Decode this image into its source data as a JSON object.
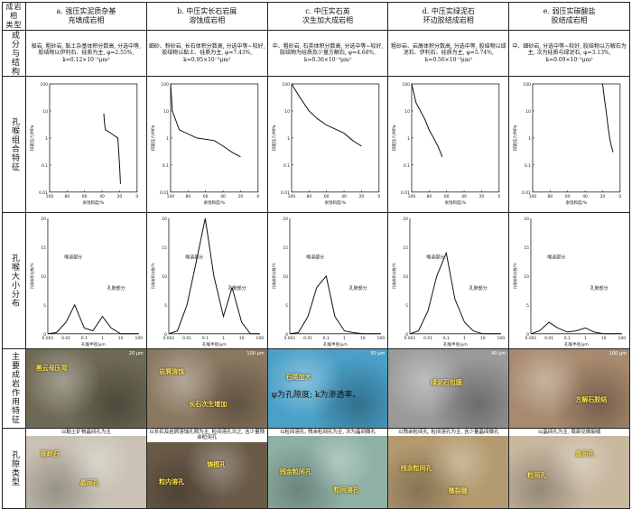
{
  "header": {
    "corner": "成岩相\n类型",
    "cols": [
      "a. 强压实泥质杂基\n充填成岩相",
      "b. 中压实长石岩屑\n溶蚀成岩相",
      "c. 中压实石英\n次生加大成岩相",
      "d. 中压实绿泥石\n环边胶结成岩相",
      "e. 弱压实碳酸盐\n胶结成岩相"
    ]
  },
  "rows": {
    "struct": "成分与结构",
    "capillary": "孔喉组合特征",
    "pore_dist": "孔喉大小分布",
    "diagenesis": "主要成岩作用特征",
    "pore_type": "孔隙类型"
  },
  "struct_text": [
    "极岩, 粗砂岩, 黏土杂基体积分数高, 分选中等, 胶结物以伊利石、硅质为主, φ=2.55%, k=0.12×10⁻³μm²",
    "细砂、粉砂岩, 长石体积分数高, 分选中等~较好, 胶结物以黏土、硅质为主, φ=7.43%, k=0.95×10⁻³μm²",
    "中、粗砂岩, 石英体积分数高, 分选中等~较好, 胶结物为硅质及少量方解石, φ=4.68%, k=0.36×10⁻³μm²",
    "粗砂岩、岩屑体积分数高, 分选中等, 胶结物以绿泥石、伊利石、硅质为主, φ=5.74%, k=0.56×10⁻³μm²",
    "中、细砂岩, 分选中等~较好, 胶结物以方解石为主, 次为硅质与绿泥石, φ=3.13%, k=0.09×10⁻³μm²"
  ],
  "axis": {
    "cap_y": "排驱压力/MPa",
    "cap_x": "汞饱和度/%",
    "cap_y_ticks": [
      "100",
      "10",
      "1",
      "0.1",
      "0.01"
    ],
    "cap_x_ticks": [
      "100",
      "80",
      "60",
      "40",
      "20",
      "0"
    ],
    "pd_y": "孔喉体积分数/%",
    "pd_x": "孔喉半径/μm",
    "pd_y_ticks": [
      "20",
      "15",
      "10",
      "5",
      "0"
    ],
    "pd_x_ticks": [
      "0.001",
      "0.01",
      "0.1",
      "1",
      "10",
      "100"
    ],
    "throat": "喉道部分",
    "pore": "孔隙部分"
  },
  "chart_data": [
    {
      "type": "line",
      "panel": "a",
      "title": "",
      "xlabel": "汞饱和度/%",
      "ylabel": "排驱压力/MPa",
      "x_reversed": true,
      "series": [
        {
          "x": [
            38,
            37,
            36,
            30,
            22,
            20,
            19
          ],
          "y": [
            8,
            3,
            2,
            1.5,
            1.0,
            0.1,
            0.02
          ]
        }
      ]
    },
    {
      "type": "line",
      "panel": "b",
      "title": "",
      "xlabel": "汞饱和度/%",
      "ylabel": "排驱压力/MPa",
      "x_reversed": true,
      "series": [
        {
          "x": [
            100,
            98,
            90,
            70,
            50,
            40,
            30,
            20
          ],
          "y": [
            100,
            10,
            2,
            1,
            0.8,
            0.5,
            0.3,
            0.2
          ]
        }
      ]
    },
    {
      "type": "line",
      "panel": "c",
      "title": "",
      "xlabel": "汞饱和度/%",
      "ylabel": "排驱压力/MPa",
      "x_reversed": true,
      "series": [
        {
          "x": [
            100,
            90,
            80,
            70,
            60,
            40,
            30,
            20
          ],
          "y": [
            100,
            30,
            10,
            5,
            3,
            1.5,
            0.8,
            0.5
          ]
        }
      ]
    },
    {
      "type": "line",
      "panel": "d",
      "title": "",
      "xlabel": "汞饱和度/%",
      "ylabel": "排驱压力/MPa",
      "x_reversed": true,
      "series": [
        {
          "x": [
            100,
            95,
            85,
            80,
            75,
            70,
            65
          ],
          "y": [
            100,
            20,
            5,
            2,
            1,
            0.5,
            0.2
          ]
        }
      ]
    },
    {
      "type": "line",
      "panel": "e",
      "title": "",
      "xlabel": "汞饱和度/%",
      "ylabel": "排驱压力/MPa",
      "x_reversed": true,
      "series": [
        {
          "x": [
            20,
            18,
            16,
            14,
            12,
            10,
            8
          ],
          "y": [
            100,
            30,
            10,
            3,
            1,
            0.5,
            0.3
          ]
        }
      ]
    },
    {
      "type": "line",
      "panel": "a",
      "title": "",
      "xlabel": "孔喉半径/μm",
      "ylabel": "孔喉体积分数/%",
      "x_log": true,
      "series": [
        {
          "x": [
            0.001,
            0.003,
            0.01,
            0.03,
            0.1,
            0.3,
            1,
            3,
            10,
            30,
            100
          ],
          "y": [
            0,
            0.2,
            2,
            5,
            1,
            0.5,
            3,
            1,
            0,
            0,
            0
          ]
        }
      ]
    },
    {
      "type": "line",
      "panel": "b",
      "title": "",
      "xlabel": "孔喉半径/μm",
      "ylabel": "孔喉体积分数/%",
      "x_log": true,
      "series": [
        {
          "x": [
            0.001,
            0.003,
            0.01,
            0.03,
            0.1,
            0.3,
            1,
            3,
            10,
            30,
            100
          ],
          "y": [
            0,
            0.5,
            5,
            12,
            20,
            10,
            3,
            8,
            2,
            0,
            0
          ]
        }
      ]
    },
    {
      "type": "line",
      "panel": "c",
      "title": "",
      "xlabel": "孔喉半径/μm",
      "ylabel": "孔喉体积分数/%",
      "x_log": true,
      "series": [
        {
          "x": [
            0.001,
            0.003,
            0.01,
            0.03,
            0.1,
            0.3,
            1,
            3,
            10,
            30,
            100
          ],
          "y": [
            0,
            0.2,
            3,
            8,
            10,
            3,
            0.5,
            0.2,
            0,
            0,
            0
          ]
        }
      ]
    },
    {
      "type": "line",
      "panel": "d",
      "title": "",
      "xlabel": "孔喉半径/μm",
      "ylabel": "孔喉体积分数/%",
      "x_log": true,
      "series": [
        {
          "x": [
            0.001,
            0.003,
            0.01,
            0.03,
            0.1,
            0.3,
            1,
            3,
            10,
            30,
            100
          ],
          "y": [
            0,
            0.5,
            4,
            10,
            14,
            6,
            2,
            0.5,
            0,
            0,
            0
          ]
        }
      ]
    },
    {
      "type": "line",
      "panel": "e",
      "title": "",
      "xlabel": "孔喉半径/μm",
      "ylabel": "孔喉体积分数/%",
      "x_log": true,
      "series": [
        {
          "x": [
            0.001,
            0.003,
            0.01,
            0.03,
            0.1,
            0.3,
            1,
            3,
            10,
            30,
            100
          ],
          "y": [
            0,
            0.5,
            2,
            1,
            0.3,
            0.5,
            1,
            0.3,
            0,
            0,
            0
          ]
        }
      ]
    }
  ],
  "diag_photos": [
    {
      "labels": [
        "黑云母压弯"
      ],
      "scale": "20 μm",
      "bg": "#6f6a55"
    },
    {
      "labels": [
        "岩屑溶蚀",
        "长石次生增加"
      ],
      "scale": "100 μm",
      "bg": "#8a7860"
    },
    {
      "labels": [
        "石英加大"
      ],
      "scale": "50 μm",
      "bg": "#4aa0c8"
    },
    {
      "labels": [
        "绿泥石包膜"
      ],
      "scale": "40 μm",
      "bg": "#9a9a9a"
    },
    {
      "labels": [
        "方解石胶结"
      ],
      "scale": "100 μm",
      "bg": "#a88a6e"
    }
  ],
  "pore_desc": [
    "以黏土矿物晶间孔为主",
    "以长石及岩屑溶蚀孔隙为主, 粒间溶孔次之, 含少量残余粒间孔",
    "以粒间溶孔, 残余粒间孔为主, 次为晶间微孔",
    "以残余粒间孔, 粒间溶孔为主, 含少量晶间微孔",
    "以晶间孔为主, 局部见微裂缝"
  ],
  "pore_photos": [
    {
      "labels": [
        "高岭石",
        "晶间孔"
      ],
      "bg": "#c9c2b4"
    },
    {
      "labels": [
        "粒内溶孔",
        "铸模孔"
      ],
      "bg": "#6a5a48"
    },
    {
      "labels": [
        "残余粒间孔",
        "粒间溶孔"
      ],
      "bg": "#8fb0a5"
    },
    {
      "labels": [
        "残余粒间孔",
        "微裂缝"
      ],
      "bg": "#b39a70"
    },
    {
      "labels": [
        "粒间孔",
        "晶间孔"
      ],
      "bg": "#c8b8a0"
    }
  ],
  "footnote": "φ为孔隙度; k为渗透率。"
}
